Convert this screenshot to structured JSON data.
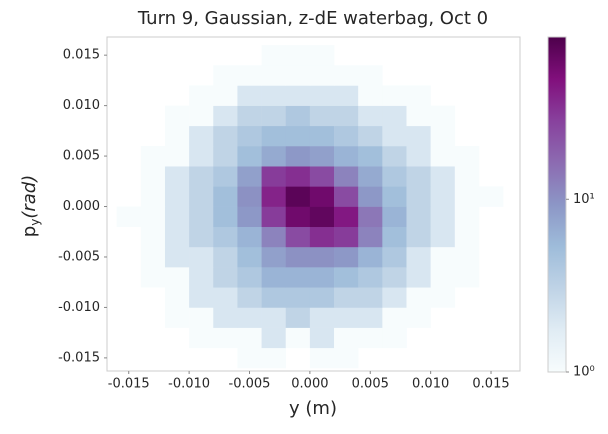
{
  "chart_data": {
    "type": "hist2d",
    "title": "Turn 9, Gaussian, z-dE waterbag, Oct 0",
    "xlabel": "y (m)",
    "ylabel": {
      "base": "p",
      "sub": "y",
      "unit": "(rad)"
    },
    "xlim": [
      -0.0168,
      0.0174
    ],
    "ylim": [
      -0.0163,
      0.0168
    ],
    "xticks": [
      -0.015,
      {
        "value": -0.01,
        "label": "-0.010"
      },
      -0.005,
      {
        "value": 0,
        "label": "0.000"
      },
      0.005,
      {
        "value": 0.01,
        "label": "0.010"
      },
      0.015
    ],
    "yticks": [
      -0.015,
      {
        "value": -0.01,
        "label": "-0.010"
      },
      -0.005,
      {
        "value": 0,
        "label": "0.000"
      },
      0.005,
      {
        "value": 0.01,
        "label": "0.010"
      },
      0.015
    ],
    "xbins": [
      -0.016,
      -0.014,
      -0.012,
      -0.01,
      -0.008,
      -0.006,
      -0.004,
      -0.002,
      0,
      0.002,
      0.004,
      0.006,
      0.008,
      0.01,
      0.012,
      0.014,
      0.016
    ],
    "ybins": [
      -0.016,
      -0.014,
      -0.012,
      -0.01,
      -0.008,
      -0.006,
      -0.004,
      -0.002,
      0,
      0.002,
      0.004,
      0.006,
      0.008,
      0.01,
      0.012,
      0.014,
      0.016
    ],
    "counts": [
      [
        0,
        0,
        0,
        0,
        0,
        1,
        1,
        0,
        1,
        1,
        0,
        0,
        0,
        0,
        0,
        0
      ],
      [
        0,
        0,
        0,
        1,
        1,
        1,
        2,
        1,
        2,
        1,
        1,
        1,
        0,
        0,
        0,
        0
      ],
      [
        0,
        0,
        1,
        1,
        2,
        2,
        2,
        3,
        2,
        2,
        2,
        1,
        1,
        0,
        0,
        0
      ],
      [
        0,
        0,
        1,
        2,
        2,
        3,
        4,
        4,
        4,
        3,
        3,
        2,
        1,
        1,
        0,
        0
      ],
      [
        0,
        1,
        1,
        2,
        3,
        4,
        6,
        6,
        6,
        5,
        4,
        3,
        2,
        1,
        1,
        0
      ],
      [
        0,
        1,
        2,
        2,
        3,
        5,
        8,
        10,
        10,
        9,
        6,
        4,
        2,
        1,
        1,
        0
      ],
      [
        0,
        1,
        2,
        3,
        4,
        6,
        12,
        25,
        35,
        30,
        12,
        5,
        3,
        2,
        1,
        0
      ],
      [
        1,
        1,
        2,
        3,
        5,
        9,
        30,
        60,
        70,
        45,
        14,
        6,
        3,
        2,
        1,
        0
      ],
      [
        0,
        1,
        2,
        3,
        5,
        10,
        40,
        75,
        60,
        25,
        9,
        5,
        3,
        2,
        1,
        1
      ],
      [
        0,
        1,
        2,
        3,
        4,
        8,
        30,
        35,
        25,
        12,
        7,
        4,
        3,
        2,
        1,
        0
      ],
      [
        0,
        1,
        1,
        2,
        3,
        5,
        7,
        9,
        8,
        6,
        5,
        3,
        2,
        1,
        1,
        0
      ],
      [
        0,
        0,
        1,
        2,
        3,
        4,
        5,
        5,
        5,
        4,
        3,
        2,
        2,
        1,
        0,
        0
      ],
      [
        0,
        0,
        1,
        1,
        2,
        3,
        3,
        4,
        3,
        3,
        2,
        2,
        1,
        1,
        0,
        0
      ],
      [
        0,
        0,
        0,
        1,
        1,
        2,
        2,
        2,
        2,
        2,
        1,
        1,
        1,
        0,
        0,
        0
      ],
      [
        0,
        0,
        0,
        0,
        1,
        1,
        1,
        1,
        1,
        1,
        1,
        0,
        0,
        0,
        0,
        0
      ],
      [
        0,
        0,
        0,
        0,
        0,
        0,
        1,
        1,
        1,
        0,
        0,
        0,
        0,
        0,
        0,
        0
      ]
    ],
    "colormap": [
      "#f7fcfd",
      "#e0ecf4",
      "#bfd3e6",
      "#9ebcda",
      "#8c96c6",
      "#8c6bb1",
      "#88419d",
      "#810f7c",
      "#4d004b"
    ],
    "log_color": true,
    "clim": [
      1,
      87
    ],
    "cticks": [
      {
        "value": 1,
        "label": "10⁰"
      },
      {
        "value": 10,
        "label": "10¹"
      }
    ],
    "grid": false
  }
}
